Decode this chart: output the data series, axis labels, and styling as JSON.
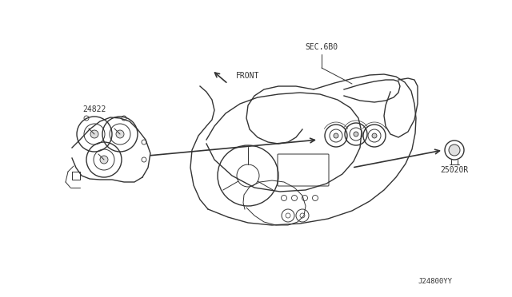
{
  "bg_color": "#ffffff",
  "line_color": "#333333",
  "fig_width": 6.4,
  "fig_height": 3.72,
  "dpi": 100,
  "label_24822": "24822",
  "label_25020r": "25020R",
  "label_sec6b0": "SEC.6B0",
  "label_front": "FRONT",
  "label_j24800yy": "J24800YY",
  "font_size_labels": 7,
  "font_size_corner": 6.5
}
